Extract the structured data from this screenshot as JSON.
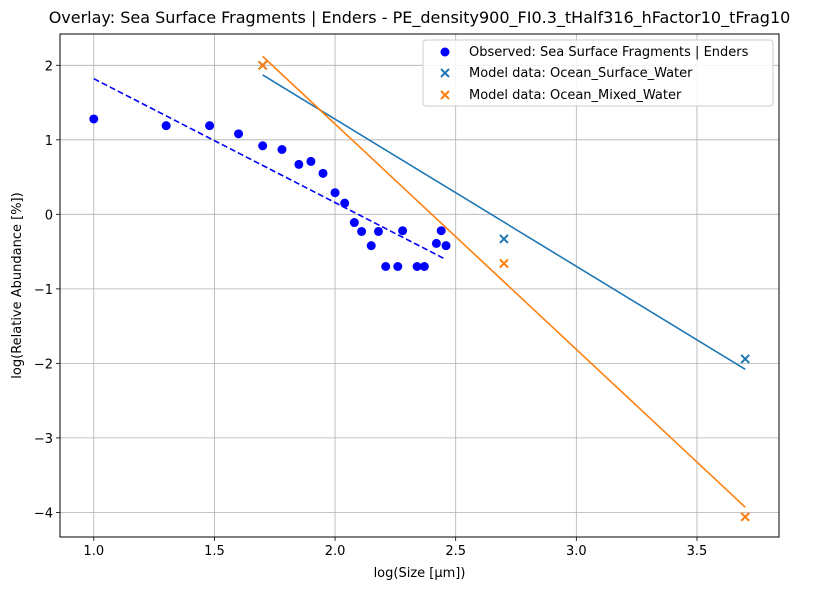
{
  "chart_data": {
    "type": "scatter",
    "title": "Overlay: Sea Surface Fragments | Enders - PE_density900_FI0.3_tHalf316_hFactor10_tFrag10",
    "xlabel": "log(Size [μm])",
    "ylabel": "log(Relative Abundance [%])",
    "xlim": [
      0.86,
      3.84
    ],
    "ylim": [
      -4.33,
      2.42
    ],
    "xticks": [
      1.0,
      1.5,
      2.0,
      2.5,
      3.0,
      3.5
    ],
    "xtick_labels": [
      "1.0",
      "1.5",
      "2.0",
      "2.5",
      "3.0",
      "3.5"
    ],
    "yticks": [
      -4,
      -3,
      -2,
      -1,
      0,
      1,
      2
    ],
    "ytick_labels": [
      "−4",
      "−3",
      "−2",
      "−1",
      "0",
      "1",
      "2"
    ],
    "grid": true,
    "legend_position": "top-right",
    "series": [
      {
        "name": "Observed: Sea Surface Fragments | Enders",
        "marker": "circle",
        "color": "#0000ff",
        "points": [
          [
            1.0,
            1.28
          ],
          [
            1.3,
            1.19
          ],
          [
            1.48,
            1.19
          ],
          [
            1.6,
            1.08
          ],
          [
            1.7,
            0.92
          ],
          [
            1.78,
            0.87
          ],
          [
            1.85,
            0.67
          ],
          [
            1.9,
            0.71
          ],
          [
            1.95,
            0.55
          ],
          [
            2.0,
            0.29
          ],
          [
            2.04,
            0.15
          ],
          [
            2.08,
            -0.11
          ],
          [
            2.11,
            -0.23
          ],
          [
            2.15,
            -0.42
          ],
          [
            2.18,
            -0.23
          ],
          [
            2.21,
            -0.7
          ],
          [
            2.26,
            -0.7
          ],
          [
            2.28,
            -0.22
          ],
          [
            2.34,
            -0.7
          ],
          [
            2.37,
            -0.7
          ],
          [
            2.42,
            -0.39
          ],
          [
            2.44,
            -0.22
          ],
          [
            2.46,
            -0.42
          ]
        ]
      },
      {
        "name": "Model data: Ocean_Surface_Water",
        "marker": "x",
        "color": "#1f77b4",
        "points": [
          [
            1.7,
            2.0
          ],
          [
            2.7,
            -0.33
          ],
          [
            3.7,
            -1.94
          ]
        ]
      },
      {
        "name": "Model data: Ocean_Mixed_Water",
        "marker": "x",
        "color": "#ff7f0e",
        "points": [
          [
            1.7,
            2.0
          ],
          [
            2.7,
            -0.66
          ],
          [
            3.7,
            -4.06
          ]
        ]
      }
    ],
    "fit_lines": [
      {
        "color": "#0000ff",
        "style": "dashed",
        "points": [
          [
            1.0,
            1.82
          ],
          [
            2.45,
            -0.59
          ]
        ]
      },
      {
        "color": "#1f77b4",
        "style": "solid",
        "points": [
          [
            1.7,
            1.87
          ],
          [
            3.7,
            -2.08
          ]
        ]
      },
      {
        "color": "#ff7f0e",
        "style": "solid",
        "points": [
          [
            1.7,
            2.12
          ],
          [
            3.7,
            -3.93
          ]
        ]
      }
    ]
  }
}
